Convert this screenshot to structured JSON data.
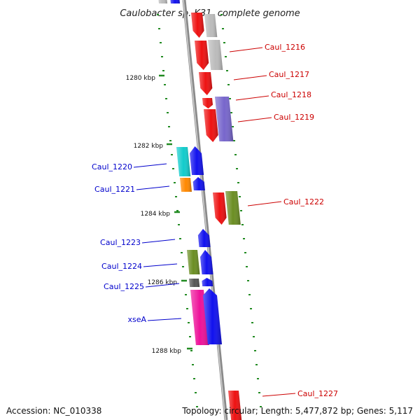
{
  "title": "Caulobacter sp. K31, complete genome",
  "footer": {
    "accession": "Accession: NC_010338",
    "summary": "Topology: circular; Length: 5,477,872 bp; Genes: 5,117"
  },
  "kbp_ticks": [
    "1280 kbp",
    "1282 kbp",
    "1284 kbp",
    "1286 kbp",
    "1288 kbp"
  ],
  "gene_labels_right": [
    "Caul_1216",
    "Caul_1217",
    "Caul_1218",
    "Caul_1219",
    "Caul_1222",
    "Caul_1227"
  ],
  "gene_labels_left": [
    "Caul_1220",
    "Caul_1221",
    "Caul_1223",
    "Caul_1224",
    "Caul_1225",
    "xseA"
  ],
  "colors": {
    "red": "#ee1111",
    "blue": "#1111ee",
    "gray": "#bbbbbb",
    "purple": "#7766cc",
    "cyan": "#11cccc",
    "orange": "#ff8800",
    "olive": "#6b8e23",
    "magenta": "#ee1199",
    "darkgray": "#555555",
    "backbone": "#888888",
    "tick_green": "#228b22"
  }
}
